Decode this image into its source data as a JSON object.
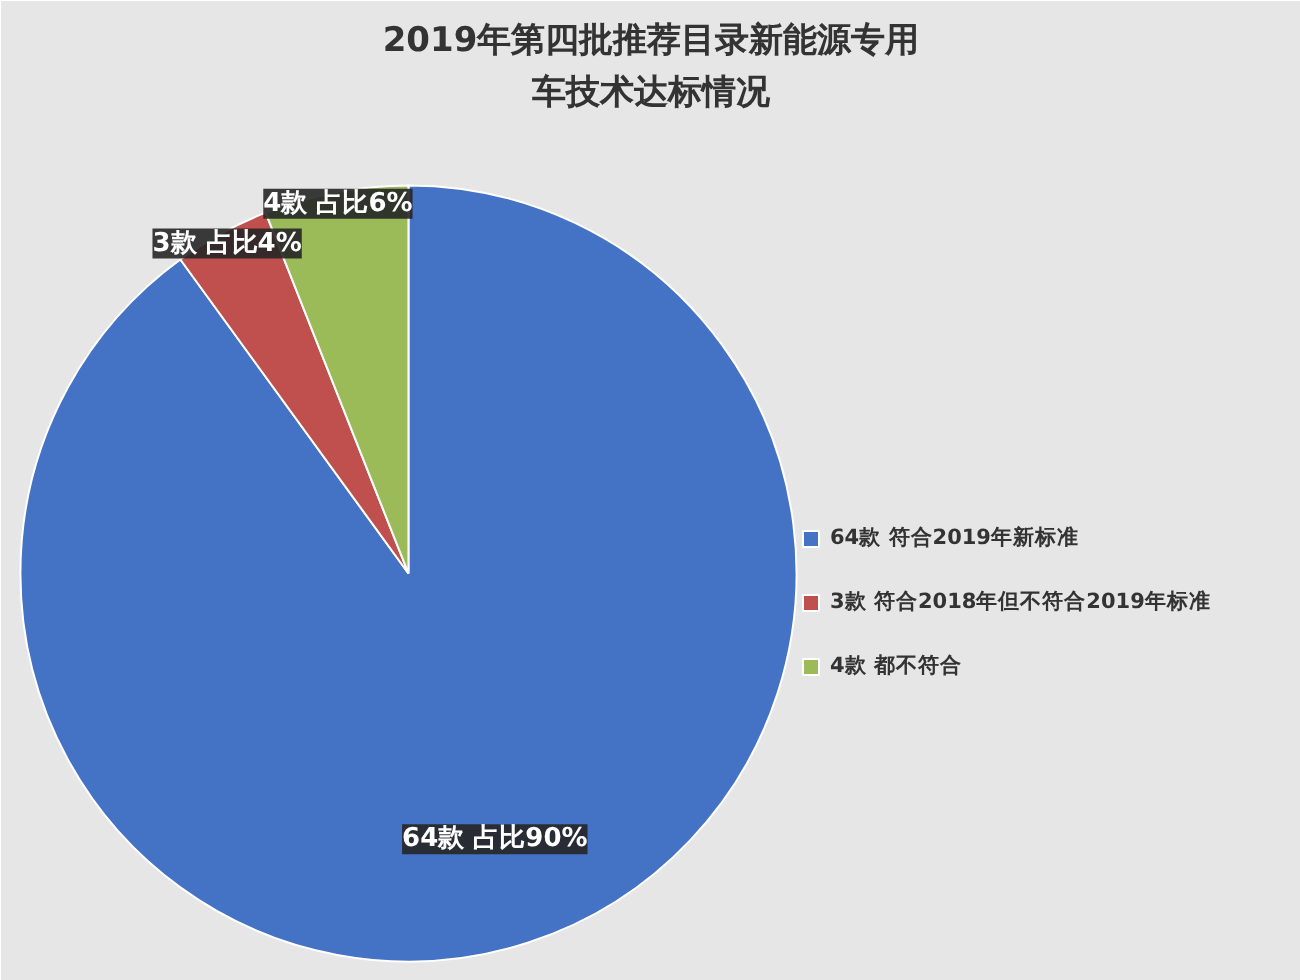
{
  "chart_data": {
    "type": "pie",
    "title": "2019年第四批推荐目录新能源专用车技术达标情况",
    "categories": [
      "64款 符合2019年新标准",
      "3款 符合2018年但不符合2019年标准",
      "4款 都不符合"
    ],
    "values": [
      90,
      4,
      6
    ],
    "colors": [
      "#4472c4",
      "#c0504d",
      "#9bbb59"
    ],
    "value_labels": [
      "64款 占比90%",
      "3款 占比4%",
      "4款 占比6%"
    ],
    "legend": "right"
  }
}
